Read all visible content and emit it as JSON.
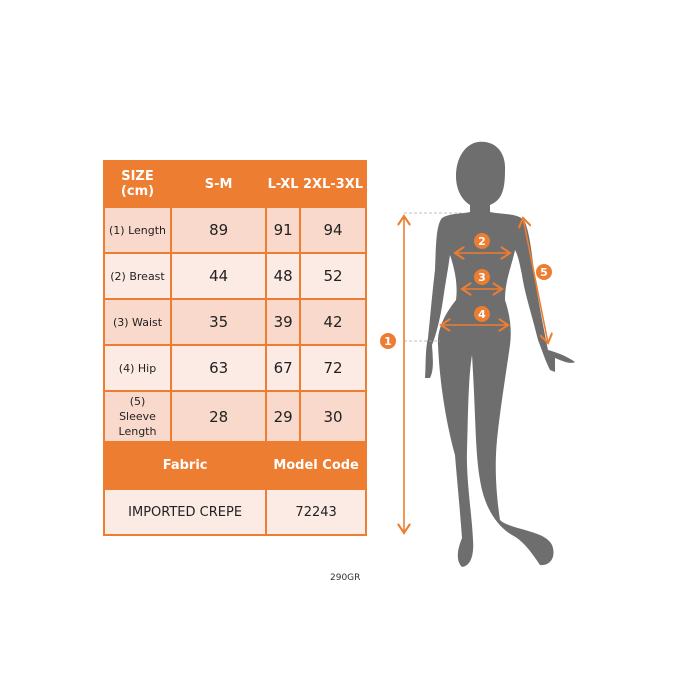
{
  "table": {
    "header": [
      "SIZE (cm)",
      "S-M",
      "L-XL",
      "2XL-3XL"
    ],
    "rows": [
      {
        "label": "(1) Length",
        "values": [
          "89",
          "91",
          "94"
        ]
      },
      {
        "label": "(2) Breast",
        "values": [
          "44",
          "48",
          "52"
        ]
      },
      {
        "label": "(3) Waist",
        "values": [
          "35",
          "39",
          "42"
        ]
      },
      {
        "label": "(4) Hip",
        "values": [
          "63",
          "67",
          "72"
        ]
      },
      {
        "label": "(5) Sleeve Length",
        "values": [
          "28",
          "29",
          "30"
        ]
      }
    ],
    "fabric_label": "Fabric",
    "model_code_label": "Model Code",
    "fabric": "IMPORTED CREPE",
    "model_code": "72243"
  },
  "weight": "290GR",
  "markers": [
    "1",
    "2",
    "3",
    "4",
    "5"
  ],
  "colors": {
    "accent": "#ed7d31",
    "silhouette": "#6e6e6e"
  }
}
